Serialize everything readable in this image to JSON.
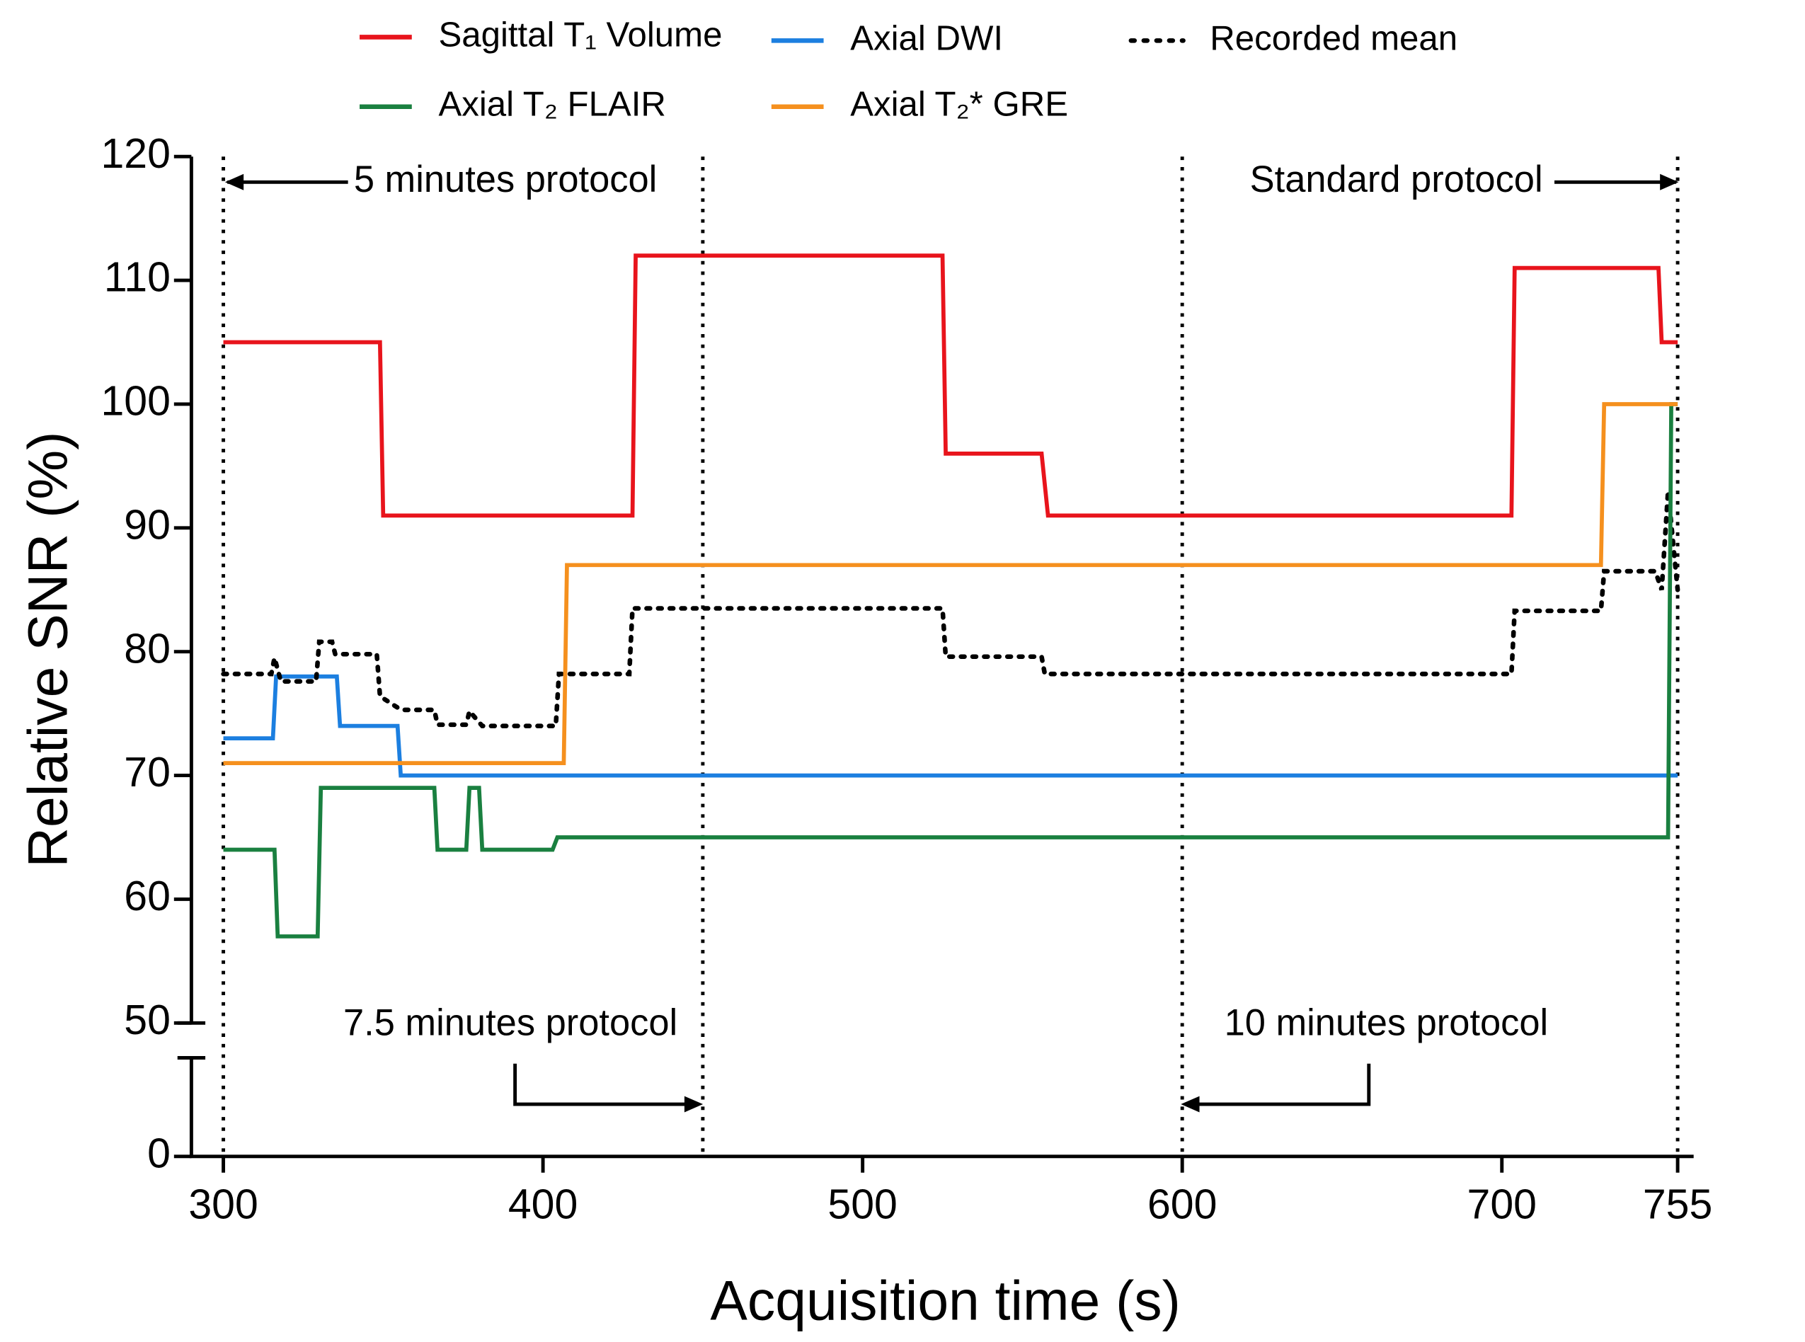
{
  "chart_data": {
    "type": "line",
    "xlabel": "Acquisition time (s)",
    "ylabel": "Relative SNR (%)",
    "xlim": [
      290,
      760
    ],
    "xticks": [
      300,
      400,
      500,
      600,
      700,
      755
    ],
    "ylim": [
      0,
      120
    ],
    "yticks": [
      0,
      50,
      60,
      70,
      80,
      90,
      100,
      110,
      120
    ],
    "ybreak": [
      0,
      50
    ],
    "grid": false,
    "step": true,
    "reference_lines": [
      300,
      450,
      600,
      755
    ],
    "annotations": [
      "5 minutes protocol",
      "Standard protocol",
      "7.5 minutes protocol",
      "10 minutes protocol"
    ],
    "series": [
      {
        "name": "Sagittal T₁ Volume",
        "color": "#e8141c",
        "dash": false,
        "x": [
          300,
          349,
          350,
          428,
          429,
          525,
          526,
          556,
          558,
          703,
          704,
          749,
          750,
          755
        ],
        "values": [
          105,
          105,
          91,
          91,
          112,
          112,
          96,
          96,
          91,
          91,
          111,
          111,
          105,
          105
        ]
      },
      {
        "name": "Axial DWI",
        "color": "#1c7fe0",
        "dash": false,
        "x": [
          300,
          315.5,
          316.5,
          335.5,
          336.5,
          354.5,
          355.5,
          755
        ],
        "values": [
          73,
          73,
          78,
          78,
          74,
          74,
          70,
          70
        ]
      },
      {
        "name": "Recorded mean",
        "color": "#000000",
        "dash": true,
        "x": [
          300,
          315,
          316,
          318,
          329,
          330,
          334,
          335,
          348,
          349,
          355,
          356,
          366,
          367,
          376,
          377,
          381,
          404,
          405,
          427,
          428,
          525,
          526,
          556,
          557,
          703,
          704,
          731,
          732,
          748,
          750,
          752,
          755
        ],
        "values": [
          78.2,
          78.2,
          79.5,
          77.6,
          77.6,
          80.8,
          80.8,
          79.8,
          79.8,
          76.4,
          75.4,
          75.3,
          75.3,
          74.1,
          74.1,
          75.2,
          74,
          74,
          78.2,
          78.2,
          83.5,
          83.5,
          79.6,
          79.6,
          78.2,
          78.2,
          83.3,
          83.3,
          86.5,
          86.5,
          85,
          93,
          85
        ]
      },
      {
        "name": "Axial T₂ FLAIR",
        "color": "#1a8040",
        "dash": false,
        "x": [
          300,
          316,
          317,
          329.5,
          330.5,
          366,
          367,
          376,
          377,
          380,
          381,
          403,
          404.5,
          752,
          753,
          755
        ],
        "values": [
          64,
          64,
          57,
          57,
          69,
          69,
          64,
          64,
          69,
          69,
          64,
          64,
          65,
          65,
          100,
          100
        ]
      },
      {
        "name": "Axial T₂* GRE",
        "color": "#f5901e",
        "dash": false,
        "x": [
          300,
          406.5,
          407.5,
          731,
          732,
          755
        ],
        "values": [
          71,
          71,
          87,
          87,
          100,
          100
        ]
      }
    ]
  }
}
